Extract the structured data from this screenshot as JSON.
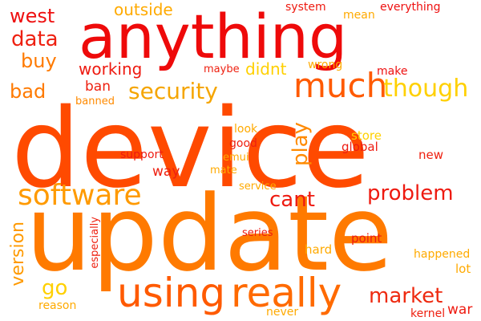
{
  "cloud": {
    "words": [
      {
        "text": "device",
        "color": "#ff4a00"
      },
      {
        "text": "update",
        "color": "#ff7a00"
      },
      {
        "text": "anything",
        "color": "#ee0a0a"
      },
      {
        "text": "using",
        "color": "#ff5a00"
      },
      {
        "text": "really",
        "color": "#ff6a00"
      },
      {
        "text": "much",
        "color": "#ff5a00"
      },
      {
        "text": "software",
        "color": "#ff9a00"
      },
      {
        "text": "security",
        "color": "#f5a500"
      },
      {
        "text": "though",
        "color": "#ffd000"
      },
      {
        "text": "problem",
        "color": "#ee1a10"
      },
      {
        "text": "cant",
        "color": "#ee1a10"
      },
      {
        "text": "market",
        "color": "#ee2a10"
      },
      {
        "text": "data",
        "color": "#ee2010"
      },
      {
        "text": "west",
        "color": "#ee1010"
      },
      {
        "text": "buy",
        "color": "#ff7a00"
      },
      {
        "text": "bad",
        "color": "#ff7a00"
      },
      {
        "text": "working",
        "color": "#ee1a10"
      },
      {
        "text": "outside",
        "color": "#ffaa00"
      },
      {
        "text": "didnt",
        "color": "#ffd000"
      },
      {
        "text": "play",
        "color": "#ff8a00"
      },
      {
        "text": "ban",
        "color": "#ee2010"
      },
      {
        "text": "version",
        "color": "#ff9a00"
      },
      {
        "text": "go",
        "color": "#ffd000"
      },
      {
        "text": "everything",
        "color": "#ee1010"
      },
      {
        "text": "system",
        "color": "#ee1a10"
      },
      {
        "text": "mean",
        "color": "#ffaa00"
      },
      {
        "text": "wrong",
        "color": "#ffaa00"
      },
      {
        "text": "make",
        "color": "#ee1010"
      },
      {
        "text": "maybe",
        "color": "#ee2010"
      },
      {
        "text": "banned",
        "color": "#ff8a00"
      },
      {
        "text": "look",
        "color": "#ffaa00"
      },
      {
        "text": "good",
        "color": "#ee2010"
      },
      {
        "text": "support",
        "color": "#ee1a10"
      },
      {
        "text": "emui",
        "color": "#ffaa00"
      },
      {
        "text": "mate",
        "color": "#ffaa00"
      },
      {
        "text": "way",
        "color": "#ee2010"
      },
      {
        "text": "store",
        "color": "#ffd000"
      },
      {
        "text": "global",
        "color": "#ee1a10"
      },
      {
        "text": "new",
        "color": "#ee2010"
      },
      {
        "text": "service",
        "color": "#ffaa00"
      },
      {
        "text": "series",
        "color": "#ee1a10"
      },
      {
        "text": "point",
        "color": "#ee1a10"
      },
      {
        "text": "hard",
        "color": "#ffaa00"
      },
      {
        "text": "happened",
        "color": "#ffaa00"
      },
      {
        "text": "lot",
        "color": "#ffaa00"
      },
      {
        "text": "especially",
        "color": "#ee2010"
      },
      {
        "text": "reason",
        "color": "#ffaa00"
      },
      {
        "text": "never",
        "color": "#ffaa00"
      },
      {
        "text": "kernel",
        "color": "#ee2010"
      },
      {
        "text": "war",
        "color": "#ee1a10"
      }
    ]
  }
}
